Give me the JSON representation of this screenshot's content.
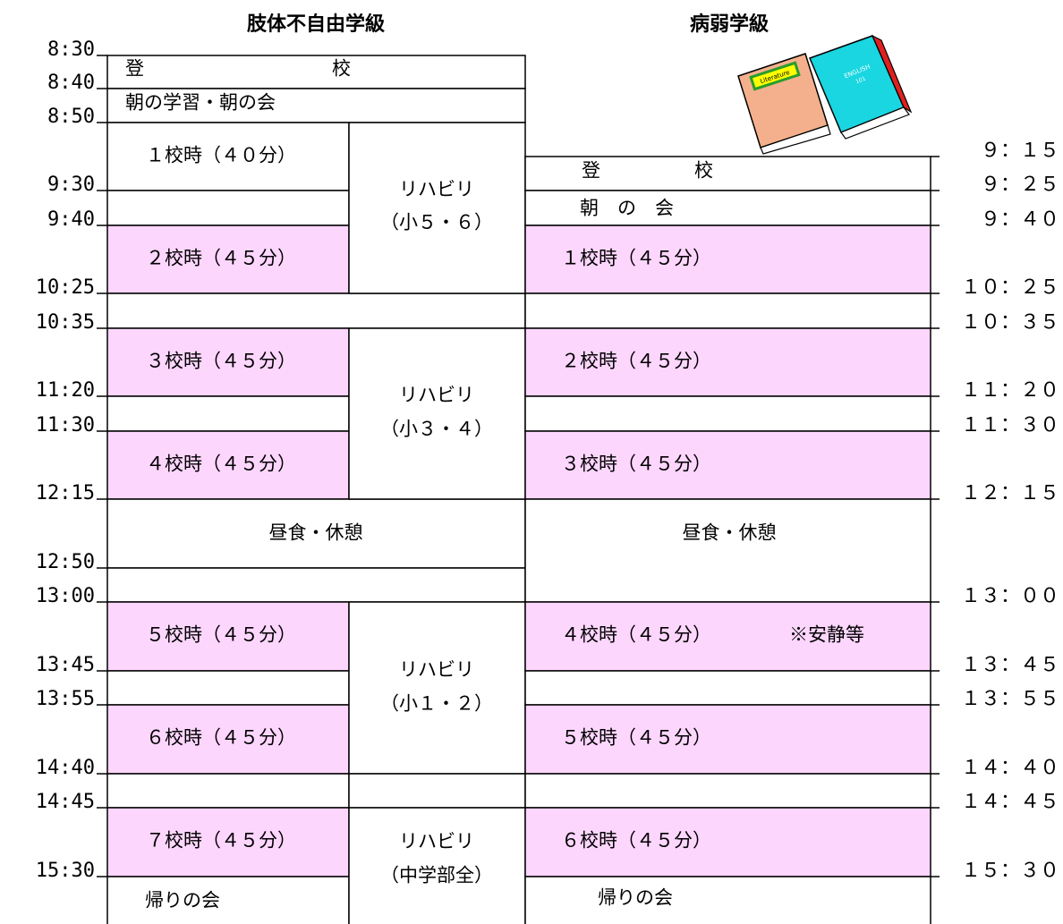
{
  "headers": {
    "left": "肢体不自由学級",
    "right": "病弱学級"
  },
  "left_times": [
    "8:30",
    "8:40",
    "8:50",
    "9:30",
    "9:40",
    "10:25",
    "10:35",
    "11:20",
    "11:30",
    "12:15",
    "12:50",
    "13:00",
    "13:45",
    "13:55",
    "14:40",
    "14:45",
    "15:30"
  ],
  "right_times": [
    "９：１５",
    "９：２５",
    "９：４０",
    "１０：２５",
    "１０：３５",
    "１１：２０",
    "１１：３０",
    "１２：１５",
    "１３：００",
    "１３：４５",
    "１３：５５",
    "１４：４０",
    "１４：４５",
    "１５：３０"
  ],
  "left": {
    "arrival": "登　　　　　　　　　　校",
    "morning": "朝の学習・朝の会",
    "periods": [
      "１校時（４０分）",
      "２校時（４５分）",
      "３校時（４５分）",
      "４校時（４５分）",
      "５校時（４５分）",
      "６校時（４５分）",
      "７校時（４５分）"
    ],
    "rehab": [
      [
        "リハビリ",
        "（小５・６）"
      ],
      [
        "リハビリ",
        "（小３・４）"
      ],
      [
        "リハビリ",
        "（小１・２）"
      ],
      [
        "リハビリ",
        "（中学部全）"
      ]
    ],
    "lunch": "昼食・休憩",
    "closing": "帰りの会"
  },
  "right": {
    "arrival": "登　　　　　校",
    "morning": "朝　の　会",
    "periods": [
      "１校時（４５分）",
      "２校時（４５分）",
      "３校時（４５分）",
      "４校時（４５分）",
      "５校時（４５分）",
      "６校時（４５分）"
    ],
    "note": "※安静等",
    "lunch": "昼食・休憩",
    "closing": "帰りの会"
  },
  "illustration": {
    "book1": "Literature",
    "book2": [
      "ENGLISH",
      "101"
    ]
  }
}
